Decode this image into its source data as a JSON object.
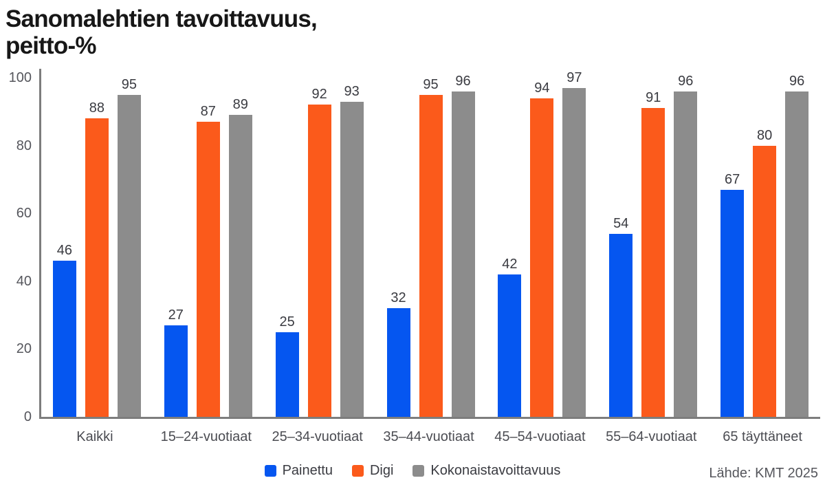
{
  "title": {
    "line1": "Sanomalehtien tavoittavuus,",
    "line2": "peitto-%"
  },
  "source": "Lähde: KMT 2025",
  "colors": {
    "painettu_blue": "#0556F0",
    "digi_orange": "#FB5A1B",
    "kokonais_gray": "#8C8C8C",
    "axis_gray": "#7D7D7D"
  },
  "chart_data": {
    "type": "bar",
    "title": "Sanomalehtien tavoittavuus, peitto-%",
    "categories": [
      "Kaikki",
      "15–24-vuotiaat",
      "25–34-vuotiaat",
      "35–44-vuotiaat",
      "45–54-vuotiaat",
      "55–64-vuotiaat",
      "65 täyttäneet"
    ],
    "series": [
      {
        "name": "Painettu",
        "color": "#0556F0",
        "values": [
          46,
          27,
          25,
          32,
          42,
          54,
          67
        ]
      },
      {
        "name": "Digi",
        "color": "#FB5A1B",
        "values": [
          88,
          87,
          92,
          95,
          94,
          91,
          80
        ]
      },
      {
        "name": "Kokonaistavoittavuus",
        "color": "#8C8C8C",
        "values": [
          95,
          89,
          93,
          96,
          97,
          96,
          96
        ]
      }
    ],
    "xlabel": "",
    "ylabel": "",
    "ylim": [
      0,
      100
    ],
    "yticks": [
      0,
      20,
      40,
      60,
      80,
      100
    ],
    "grid": false,
    "legend_position": "bottom",
    "value_labels": true
  }
}
